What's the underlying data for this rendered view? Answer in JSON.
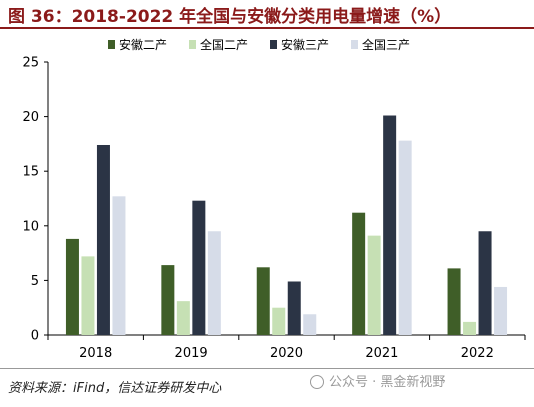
{
  "header": {
    "figure_title": "图 36：2018-2022 年全国与安徽分类用电量增速（%）"
  },
  "footer": {
    "source": "资料来源：iFind，信达证券研发中心",
    "watermark": "公众号 · 黑金新视野"
  },
  "chart_data": {
    "type": "bar",
    "title": "",
    "xlabel": "",
    "ylabel": "",
    "categories": [
      "2018",
      "2019",
      "2020",
      "2021",
      "2022"
    ],
    "ylim": [
      0,
      25
    ],
    "yticks": [
      0,
      5,
      10,
      15,
      20,
      25
    ],
    "grid": false,
    "legend_position": "top-right",
    "series": [
      {
        "name": "安徽二产",
        "color": "#3f5e28",
        "values": [
          8.8,
          6.4,
          6.2,
          11.2,
          6.1
        ]
      },
      {
        "name": "全国二产",
        "color": "#c6e0b4",
        "values": [
          7.2,
          3.1,
          2.5,
          9.1,
          1.2
        ]
      },
      {
        "name": "安徽三产",
        "color": "#2b3445",
        "values": [
          17.4,
          12.3,
          4.9,
          20.1,
          9.5
        ]
      },
      {
        "name": "全国三产",
        "color": "#d6dce8",
        "values": [
          12.7,
          9.5,
          1.9,
          17.8,
          4.4
        ]
      }
    ]
  }
}
